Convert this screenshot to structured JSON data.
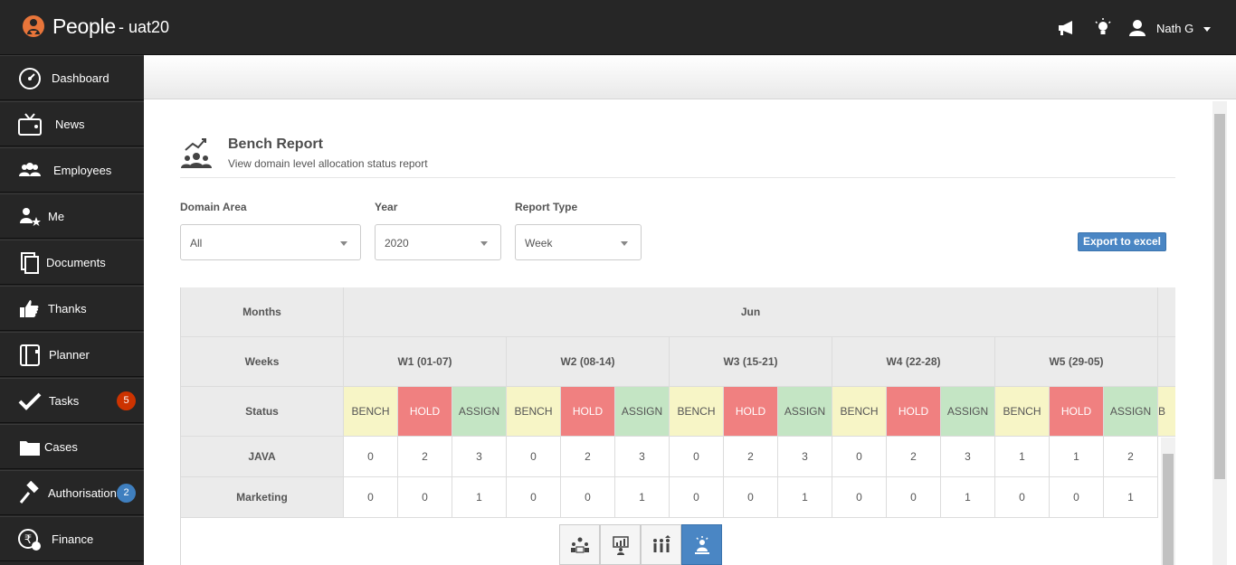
{
  "header": {
    "brand": "People",
    "instance": "- uat20",
    "user": "Nath G",
    "icons": [
      "megaphone-icon",
      "lightbulb-icon",
      "user-icon"
    ]
  },
  "sidebar": {
    "items": [
      {
        "label": "Dashboard",
        "icon": "dashboard-icon"
      },
      {
        "label": "News",
        "icon": "tv-icon"
      },
      {
        "label": "Employees",
        "icon": "users-icon"
      },
      {
        "label": "Me",
        "icon": "user-star-icon"
      },
      {
        "label": "Documents",
        "icon": "documents-icon"
      },
      {
        "label": "Thanks",
        "icon": "thumbs-up-icon"
      },
      {
        "label": "Planner",
        "icon": "planner-icon"
      },
      {
        "label": "Tasks",
        "icon": "check-icon",
        "badge": "5",
        "badge_color": "#cc3300"
      },
      {
        "label": "Cases",
        "icon": "folder-icon"
      },
      {
        "label": "Authorisations",
        "icon": "gavel-icon",
        "badge": "2",
        "badge_color": "#3f7fbf"
      },
      {
        "label": "Finance",
        "icon": "rupee-icon"
      }
    ]
  },
  "page": {
    "title": "Bench Report",
    "subtitle": "View domain level allocation status report"
  },
  "filters": {
    "domain_label": "Domain Area",
    "domain_value": "All",
    "year_label": "Year",
    "year_value": "2020",
    "type_label": "Report Type",
    "type_value": "Week",
    "export_label": "Export to excel"
  },
  "table": {
    "months_label": "Months",
    "weeks_label": "Weeks",
    "status_label": "Status",
    "month": "Jun",
    "weeks": [
      "W1 (01-07)",
      "W2 (08-14)",
      "W3 (15-21)",
      "W4 (22-28)",
      "W5 (29-05)"
    ],
    "statuses": [
      "BENCH",
      "HOLD",
      "ASSIGN"
    ],
    "next_partial": "B",
    "rows": [
      {
        "domain": "JAVA",
        "values": [
          0,
          2,
          3,
          0,
          2,
          3,
          0,
          2,
          3,
          0,
          2,
          3,
          1,
          1,
          2
        ]
      },
      {
        "domain": "Marketing",
        "values": [
          0,
          0,
          1,
          0,
          0,
          1,
          0,
          0,
          1,
          0,
          0,
          1,
          0,
          0,
          1
        ]
      }
    ]
  },
  "colors": {
    "bench": "#f7f5c6",
    "hold": "#f08080",
    "assign": "#c4e5c4",
    "accent": "#4a86c4"
  },
  "view_tabs": [
    "team-view-icon",
    "chart-view-icon",
    "group-view-icon",
    "bench-person-icon"
  ]
}
